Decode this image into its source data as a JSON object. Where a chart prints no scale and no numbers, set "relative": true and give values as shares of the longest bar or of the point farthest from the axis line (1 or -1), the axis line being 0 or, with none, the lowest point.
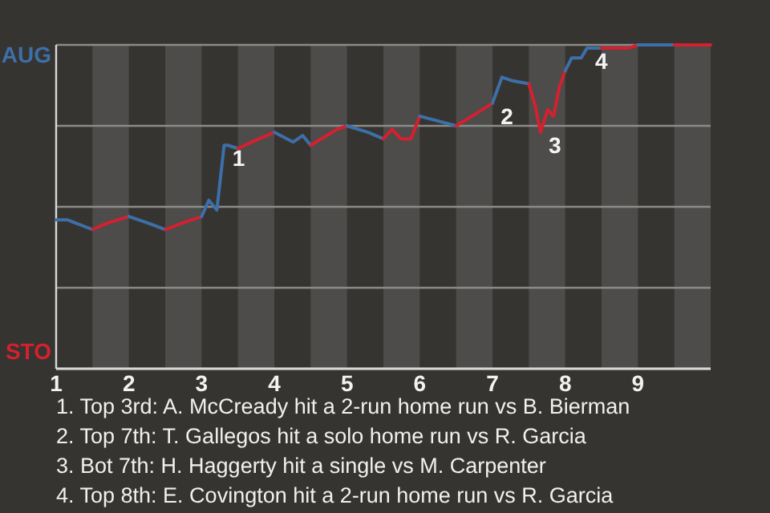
{
  "chart_data": {
    "type": "line",
    "series": [
      {
        "name": "AUG",
        "color": "#3d6fa8",
        "x": [
          1,
          1.15,
          1.5
        ],
        "values": [
          0.46,
          0.46,
          0.43
        ]
      },
      {
        "name": "STO",
        "color": "#d4202f",
        "x": [
          1.5,
          1.71,
          2
        ],
        "values": [
          0.43,
          0.45,
          0.47
        ]
      },
      {
        "color": "#3d6fa8",
        "x": [
          2,
          2.26,
          2.5
        ],
        "values": [
          0.47,
          0.45,
          0.43
        ]
      },
      {
        "color": "#d4202f",
        "x": [
          2.5,
          2.74,
          3
        ],
        "values": [
          0.43,
          0.45,
          0.47
        ]
      },
      {
        "color": "#3d6fa8",
        "x": [
          3,
          3.1,
          3.21,
          3.31,
          3.36,
          3.5
        ],
        "values": [
          0.47,
          0.52,
          0.49,
          0.69,
          0.69,
          0.68
        ]
      },
      {
        "color": "#d4202f",
        "x": [
          3.5,
          3.79,
          4
        ],
        "values": [
          0.68,
          0.71,
          0.73
        ]
      },
      {
        "color": "#3d6fa8",
        "x": [
          4,
          4.26,
          4.39,
          4.5
        ],
        "values": [
          0.73,
          0.7,
          0.72,
          0.69
        ]
      },
      {
        "color": "#d4202f",
        "x": [
          4.5,
          4.87,
          5
        ],
        "values": [
          0.69,
          0.74,
          0.75
        ]
      },
      {
        "color": "#3d6fa8",
        "x": [
          5,
          5.29,
          5.5
        ],
        "values": [
          0.75,
          0.73,
          0.71
        ]
      },
      {
        "color": "#d4202f",
        "x": [
          5.5,
          5.62,
          5.74,
          5.88,
          6
        ],
        "values": [
          0.71,
          0.74,
          0.71,
          0.71,
          0.78
        ]
      },
      {
        "color": "#3d6fa8",
        "x": [
          6,
          6.5
        ],
        "values": [
          0.78,
          0.75
        ]
      },
      {
        "color": "#d4202f",
        "x": [
          6.5,
          6.79,
          7
        ],
        "values": [
          0.75,
          0.79,
          0.82
        ]
      },
      {
        "color": "#3d6fa8",
        "x": [
          7,
          7.13,
          7.26,
          7.5
        ],
        "values": [
          0.82,
          0.9,
          0.89,
          0.88
        ]
      },
      {
        "color": "#d4202f",
        "x": [
          7.5,
          7.59,
          7.66,
          7.76,
          7.84,
          7.92,
          8
        ],
        "values": [
          0.88,
          0.81,
          0.73,
          0.8,
          0.78,
          0.87,
          0.92
        ]
      },
      {
        "color": "#3d6fa8",
        "x": [
          8,
          8.09,
          8.15,
          8.22,
          8.3,
          8.5
        ],
        "values": [
          0.92,
          0.96,
          0.96,
          0.96,
          0.99,
          0.99
        ]
      },
      {
        "color": "#d4202f",
        "x": [
          8.5,
          8.87,
          9
        ],
        "values": [
          0.99,
          0.99,
          1
        ]
      },
      {
        "color": "#3d6fa8",
        "x": [
          9,
          9.5
        ],
        "values": [
          1,
          1
        ]
      },
      {
        "color": "#d4202f",
        "x": [
          9.5,
          10
        ],
        "values": [
          1,
          1
        ]
      }
    ],
    "xlim": [
      1,
      10
    ],
    "xticks": [
      1,
      2,
      3,
      4,
      5,
      6,
      7,
      8,
      9
    ],
    "relative": true,
    "grid": "y",
    "legend": false,
    "marker": "none",
    "line_style": "solid",
    "bands": [
      {
        "axis": "x",
        "from": 1.5,
        "to": 2,
        "color": "#4d4c4a"
      },
      {
        "axis": "x",
        "from": 2.5,
        "to": 3,
        "color": "#4d4c4a"
      },
      {
        "axis": "x",
        "from": 3.5,
        "to": 4,
        "color": "#4d4c4a"
      },
      {
        "axis": "x",
        "from": 4.5,
        "to": 5,
        "color": "#4d4c4a"
      },
      {
        "axis": "x",
        "from": 5.5,
        "to": 6,
        "color": "#4d4c4a"
      },
      {
        "axis": "x",
        "from": 6.5,
        "to": 7,
        "color": "#4d4c4a"
      },
      {
        "axis": "x",
        "from": 7.5,
        "to": 8,
        "color": "#4d4c4a"
      },
      {
        "axis": "x",
        "from": 8.5,
        "to": 9,
        "color": "#4d4c4a"
      },
      {
        "axis": "x",
        "from": 9.5,
        "to": 10,
        "color": "#4d4c4a"
      }
    ],
    "annotations": [
      {
        "text": "1",
        "x": 3.31,
        "y": 0.69
      },
      {
        "text": "2",
        "x": 7,
        "y": 0.82
      },
      {
        "text": "3",
        "x": 7.66,
        "y": 0.73
      },
      {
        "text": "4",
        "x": 8.3,
        "y": 0.99
      },
      "1. Top 3rd: A. McCready hit a 2-run home run vs B. Bierman",
      "2. Top 7th: T. Gallegos hit a solo home run vs R. Garcia",
      "3. Bot 7th: H. Haggerty hit a single vs M. Carpenter",
      "4. Top 8th: E. Covington hit a 2-run home run vs R. Garcia"
    ]
  }
}
